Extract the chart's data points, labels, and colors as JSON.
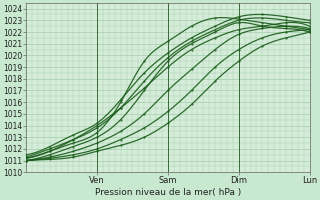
{
  "title": "",
  "xlabel": "Pression niveau de la mer( hPa )",
  "ylim": [
    1010,
    1024.5
  ],
  "yticks": [
    1010,
    1011,
    1012,
    1013,
    1014,
    1015,
    1016,
    1017,
    1018,
    1019,
    1020,
    1021,
    1022,
    1023,
    1024
  ],
  "xlim": [
    0,
    96
  ],
  "xtick_positions": [
    24,
    48,
    72,
    96
  ],
  "xtick_labels": [
    "Ven",
    "Sam",
    "Dim",
    "Lun"
  ],
  "background_color": "#c8e8d0",
  "plot_bg_color": "#d4ecd8",
  "grid_color": "#98c8a0",
  "line_color": "#1a5c1a",
  "line_width": 0.9,
  "lines": [
    {
      "x": [
        0,
        8,
        16,
        24,
        32,
        40,
        48,
        56,
        64,
        72,
        80,
        88,
        96
      ],
      "y": [
        1011.2,
        1011.8,
        1012.5,
        1013.4,
        1016.0,
        1019.5,
        1021.2,
        1022.5,
        1023.2,
        1023.1,
        1022.8,
        1022.5,
        1022.2
      ]
    },
    {
      "x": [
        0,
        8,
        16,
        24,
        32,
        40,
        48,
        56,
        64,
        72,
        80,
        88,
        96
      ],
      "y": [
        1011.0,
        1011.5,
        1012.2,
        1013.0,
        1014.5,
        1017.0,
        1019.5,
        1021.0,
        1022.0,
        1022.8,
        1022.5,
        1022.3,
        1022.0
      ]
    },
    {
      "x": [
        0,
        8,
        16,
        24,
        32,
        40,
        48,
        56,
        64,
        72,
        80,
        88,
        96
      ],
      "y": [
        1011.3,
        1012.0,
        1012.8,
        1013.8,
        1015.5,
        1017.8,
        1019.8,
        1021.2,
        1022.2,
        1023.0,
        1023.2,
        1023.0,
        1022.8
      ]
    },
    {
      "x": [
        0,
        8,
        16,
        24,
        32,
        40,
        48,
        56,
        64,
        72,
        80,
        88,
        96
      ],
      "y": [
        1011.5,
        1012.2,
        1013.2,
        1014.2,
        1016.2,
        1018.5,
        1020.2,
        1021.5,
        1022.5,
        1023.3,
        1023.5,
        1023.3,
        1023.0
      ]
    },
    {
      "x": [
        0,
        8,
        16,
        24,
        32,
        40,
        48,
        56,
        64,
        72,
        80,
        88,
        96
      ],
      "y": [
        1011.0,
        1011.3,
        1011.8,
        1012.5,
        1013.5,
        1015.0,
        1017.0,
        1018.8,
        1020.5,
        1021.8,
        1022.3,
        1022.5,
        1022.3
      ]
    },
    {
      "x": [
        0,
        8,
        16,
        24,
        32,
        40,
        48,
        56,
        64,
        72,
        80,
        88,
        96
      ],
      "y": [
        1011.0,
        1011.2,
        1011.5,
        1012.0,
        1012.8,
        1013.8,
        1015.2,
        1017.0,
        1019.0,
        1020.5,
        1021.5,
        1022.0,
        1022.2
      ]
    },
    {
      "x": [
        0,
        8,
        16,
        24,
        32,
        40,
        48,
        56,
        64,
        72,
        80,
        88,
        96
      ],
      "y": [
        1011.0,
        1011.1,
        1011.3,
        1011.8,
        1012.3,
        1013.0,
        1014.2,
        1015.8,
        1017.8,
        1019.5,
        1020.8,
        1021.5,
        1022.0
      ]
    },
    {
      "x": [
        0,
        8,
        16,
        24,
        32,
        40,
        48,
        56,
        64,
        72,
        80,
        88,
        96
      ],
      "y": [
        1011.2,
        1011.8,
        1012.8,
        1014.0,
        1015.5,
        1017.2,
        1019.0,
        1020.5,
        1021.5,
        1022.2,
        1022.5,
        1022.8,
        1022.5
      ]
    }
  ]
}
